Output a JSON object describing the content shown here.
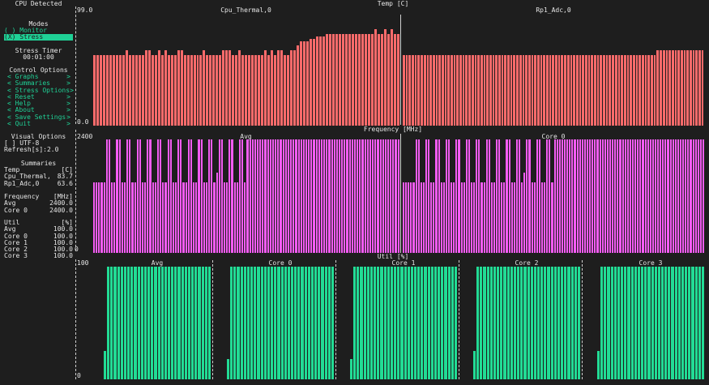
{
  "colors": {
    "background": "#1e1e1e",
    "text": "#e6e6e6",
    "accent": "#1fd196",
    "temp_bar": "#fe6b6b",
    "freq_bar": "#f45cf4",
    "util_bar": "#22dc95"
  },
  "sidebar": {
    "title": "CPU Detected",
    "modes_header": "Modes",
    "mode_monitor": "( ) Monitor",
    "mode_stress": "(X) Stress",
    "stress_timer_header": "Stress Timer",
    "stress_timer_value": "00:01:00",
    "control_header": "Control Options",
    "control_items": [
      {
        "label": "< Graphs",
        "arrow": ">"
      },
      {
        "label": "< Summaries",
        "arrow": ">"
      },
      {
        "label": "< Stress Options",
        "arrow": ">"
      },
      {
        "label": "< Reset",
        "arrow": ">"
      },
      {
        "label": "< Help",
        "arrow": ">"
      },
      {
        "label": "< About",
        "arrow": ">"
      },
      {
        "label": "< Save Settings",
        "arrow": ">"
      },
      {
        "label": "< Quit",
        "arrow": ">"
      }
    ],
    "visual_header": "Visual Options",
    "utf8": "[ ] UTF-8",
    "refresh": "Refresh[s]:2.0",
    "summaries_header": "Summaries",
    "temp_header": {
      "label": "Temp",
      "unit": "[C]"
    },
    "temp_rows": [
      {
        "name": "Cpu_Thermal,",
        "value": "83.7"
      },
      {
        "name": "Rp1_Adc,0",
        "value": "63.6"
      }
    ],
    "freq_header": {
      "label": "Frequency",
      "unit": "[MHz]"
    },
    "freq_rows": [
      {
        "name": "Avg",
        "value": "2400.0"
      },
      {
        "name": "Core 0",
        "value": "2400.0"
      }
    ],
    "util_header": {
      "label": "Util",
      "unit": "[%]"
    },
    "util_rows": [
      {
        "name": "Avg",
        "value": "100.0"
      },
      {
        "name": "Core 0",
        "value": "100.0"
      },
      {
        "name": "Core 1",
        "value": "100.0"
      },
      {
        "name": "Core 2",
        "value": "100.0"
      },
      {
        "name": "Core 3",
        "value": "100.0"
      }
    ],
    "stray_char": "0"
  },
  "temp_section": {
    "title": "Temp [C]",
    "y_max_label": "99.0",
    "y_min_label": "0.0",
    "graphs": [
      {
        "name": "Cpu_Thermal,0"
      },
      {
        "name": "Rp1_Adc,0"
      }
    ]
  },
  "freq_section": {
    "title": "Frequency [MHz]",
    "y_max_label": "2400",
    "graphs": [
      {
        "name": "Avg"
      },
      {
        "name": "Core 0"
      }
    ]
  },
  "util_section": {
    "title": "Util [%]",
    "y_max_label": "100",
    "y_min_label": "0",
    "graphs": [
      {
        "name": "Avg"
      },
      {
        "name": "Core 0"
      },
      {
        "name": "Core 1"
      },
      {
        "name": "Core 2"
      },
      {
        "name": "Core 3"
      }
    ]
  },
  "chart_data": [
    {
      "type": "bar",
      "title": "Temp [C]",
      "series_name": "Cpu_Thermal,0",
      "ylim": [
        0,
        99
      ],
      "values": [
        62.9,
        62.9,
        62.9,
        62.9,
        62.9,
        62.9,
        62.9,
        62.9,
        62.9,
        62.9,
        67.1,
        62.9,
        62.9,
        62.9,
        62.9,
        62.9,
        67.1,
        67.1,
        62.9,
        62.9,
        67.1,
        62.9,
        67.1,
        62.9,
        62.9,
        62.9,
        67.1,
        67.1,
        62.9,
        62.9,
        62.9,
        62.9,
        62.9,
        62.9,
        67.1,
        62.9,
        62.9,
        62.9,
        62.9,
        62.9,
        67.1,
        67.1,
        67.1,
        62.9,
        62.9,
        67.1,
        62.9,
        62.9,
        62.9,
        62.9,
        62.9,
        62.9,
        62.9,
        67.1,
        62.9,
        67.1,
        62.9,
        67.1,
        67.1,
        62.9,
        62.9,
        67.1,
        67.1,
        71.3,
        75.5,
        75.5,
        75.5,
        77.6,
        77.6,
        79.7,
        79.7,
        79.7,
        81.8,
        81.8,
        81.8,
        81.8,
        81.8,
        81.8,
        81.8,
        81.8,
        81.8,
        81.8,
        81.8,
        81.8,
        81.8,
        81.8,
        81.8,
        86.0,
        81.8,
        81.8,
        86.0,
        81.8,
        86.0,
        81.8,
        81.8
      ]
    },
    {
      "type": "bar",
      "title": "Temp [C]",
      "series_name": "Rp1_Adc,0",
      "ylim": [
        0,
        99
      ],
      "values": [
        62.9,
        62.9,
        62.9,
        62.9,
        62.9,
        62.9,
        62.9,
        62.9,
        62.9,
        62.9,
        62.9,
        62.9,
        62.9,
        62.9,
        62.9,
        62.9,
        62.9,
        62.9,
        62.9,
        62.9,
        62.9,
        62.9,
        62.9,
        62.9,
        62.9,
        62.9,
        62.9,
        62.9,
        62.9,
        62.9,
        62.9,
        62.9,
        62.9,
        62.9,
        62.9,
        62.9,
        62.9,
        62.9,
        62.9,
        62.9,
        62.9,
        62.9,
        62.9,
        62.9,
        62.9,
        62.9,
        62.9,
        62.9,
        62.9,
        62.9,
        62.9,
        62.9,
        62.9,
        62.9,
        62.9,
        62.9,
        62.9,
        62.9,
        62.9,
        62.9,
        62.9,
        62.9,
        62.9,
        62.9,
        62.9,
        62.9,
        62.9,
        62.9,
        62.9,
        62.9,
        62.9,
        62.9,
        62.9,
        62.9,
        62.9,
        62.9,
        62.9,
        62.9,
        62.9,
        62.9,
        62.9,
        62.9,
        62.9,
        62.9,
        62.9,
        67.1,
        67.1,
        67.1,
        67.1,
        67.1,
        67.1,
        67.1,
        67.1,
        67.1,
        67.1,
        67.1,
        67.1,
        67.1,
        67.1,
        67.1,
        67.1
      ]
    },
    {
      "type": "bar",
      "title": "Frequency [MHz]",
      "series_name": "Avg",
      "ylim": [
        0,
        2400
      ],
      "values": [
        1500,
        1500,
        1500,
        1500,
        1500,
        2400,
        2400,
        1500,
        1500,
        2400,
        2400,
        1500,
        1500,
        2400,
        2400,
        1500,
        1500,
        2400,
        2400,
        1500,
        1500,
        2400,
        2400,
        1500,
        1500,
        2400,
        2400,
        1500,
        1500,
        2400,
        2400,
        1500,
        1500,
        2400,
        2400,
        1500,
        1500,
        2400,
        2400,
        1500,
        1500,
        2400,
        2400,
        1500,
        1500,
        2400,
        2400,
        1500,
        1700,
        2400,
        2400,
        1500,
        1500,
        2400,
        2400,
        1500,
        1500,
        2400,
        2400,
        1500,
        2400,
        2400,
        2400,
        2400,
        2400,
        2400,
        2400,
        2400,
        2400,
        2400,
        2400,
        2400,
        2400,
        2400,
        2400,
        2400,
        2400,
        2400,
        2400,
        2400,
        2400,
        2400,
        2400,
        2400,
        2400,
        2400,
        2400,
        2400,
        2400,
        2400,
        2400,
        2400,
        2400,
        2400,
        2400,
        2400,
        2400,
        2400,
        2400,
        2400,
        2400,
        2400,
        2400,
        2400,
        2400,
        2400,
        2400,
        2400,
        2400,
        2400,
        2400,
        2400,
        2400,
        2400,
        2400,
        2400,
        2400,
        2400,
        2400,
        2400
      ]
    },
    {
      "type": "bar",
      "title": "Frequency [MHz]",
      "series_name": "Core 0",
      "ylim": [
        0,
        2400
      ],
      "values": [
        1500,
        1500,
        1500,
        1500,
        1500,
        2400,
        2400,
        1500,
        1500,
        2400,
        2400,
        1500,
        1500,
        2400,
        2400,
        1500,
        1500,
        2400,
        2400,
        1500,
        1500,
        2400,
        2400,
        1500,
        1500,
        2400,
        2400,
        1500,
        1500,
        2400,
        2400,
        1500,
        1500,
        2400,
        2400,
        1500,
        1500,
        2400,
        2400,
        1500,
        1500,
        2400,
        2400,
        1500,
        1500,
        2400,
        2400,
        1500,
        1700,
        2400,
        2400,
        1500,
        1500,
        2400,
        2400,
        1500,
        1500,
        2400,
        2400,
        1500,
        2400,
        2400,
        2400,
        2400,
        2400,
        2400,
        2400,
        2400,
        2400,
        2400,
        2400,
        2400,
        2400,
        2400,
        2400,
        2400,
        2400,
        2400,
        2400,
        2400,
        2400,
        2400,
        2400,
        2400,
        2400,
        2400,
        2400,
        2400,
        2400,
        2400,
        2400,
        2400,
        2400,
        2400,
        2400,
        2400,
        2400,
        2400,
        2400,
        2400,
        2400,
        2400,
        2400,
        2400,
        2400,
        2400,
        2400,
        2400,
        2400,
        2400,
        2400,
        2400,
        2400,
        2400,
        2400,
        2400,
        2400,
        2400,
        2400,
        2400
      ]
    },
    {
      "type": "bar",
      "title": "Util [%]",
      "series_name": "Avg",
      "ylim": [
        0,
        100
      ],
      "values": [
        25,
        100,
        100,
        100,
        100,
        100,
        100,
        100,
        100,
        100,
        100,
        100,
        100,
        100,
        100,
        100,
        100,
        100,
        100,
        100,
        100,
        100,
        100,
        100,
        100,
        100,
        100,
        100,
        100,
        100,
        100,
        100
      ]
    },
    {
      "type": "bar",
      "title": "Util [%]",
      "series_name": "Core 0",
      "ylim": [
        0,
        100
      ],
      "values": [
        18,
        100,
        100,
        100,
        100,
        100,
        100,
        100,
        100,
        100,
        100,
        100,
        100,
        100,
        100,
        100,
        100,
        100,
        100,
        100,
        100,
        100,
        100,
        100,
        100,
        100,
        100,
        100,
        100,
        100,
        100,
        100
      ]
    },
    {
      "type": "bar",
      "title": "Util [%]",
      "series_name": "Core 1",
      "ylim": [
        0,
        100
      ],
      "values": [
        18,
        100,
        100,
        100,
        100,
        100,
        100,
        100,
        100,
        100,
        100,
        100,
        100,
        100,
        100,
        100,
        100,
        100,
        100,
        100,
        100,
        100,
        100,
        100,
        100,
        100,
        100,
        100,
        100,
        100,
        100,
        100
      ]
    },
    {
      "type": "bar",
      "title": "Util [%]",
      "series_name": "Core 2",
      "ylim": [
        0,
        100
      ],
      "values": [
        25,
        100,
        100,
        100,
        100,
        100,
        100,
        100,
        100,
        100,
        100,
        100,
        100,
        100,
        100,
        100,
        100,
        100,
        100,
        100,
        100,
        100,
        100,
        100,
        100,
        100,
        100,
        100,
        100,
        100,
        100,
        100
      ]
    },
    {
      "type": "bar",
      "title": "Util [%]",
      "series_name": "Core 3",
      "ylim": [
        0,
        100
      ],
      "values": [
        25,
        100,
        100,
        100,
        100,
        100,
        100,
        100,
        100,
        100,
        100,
        100,
        100,
        100,
        100,
        100,
        100,
        100,
        100,
        100,
        100,
        100,
        100,
        100,
        100,
        100,
        100,
        100,
        100,
        100,
        100,
        100
      ]
    }
  ]
}
